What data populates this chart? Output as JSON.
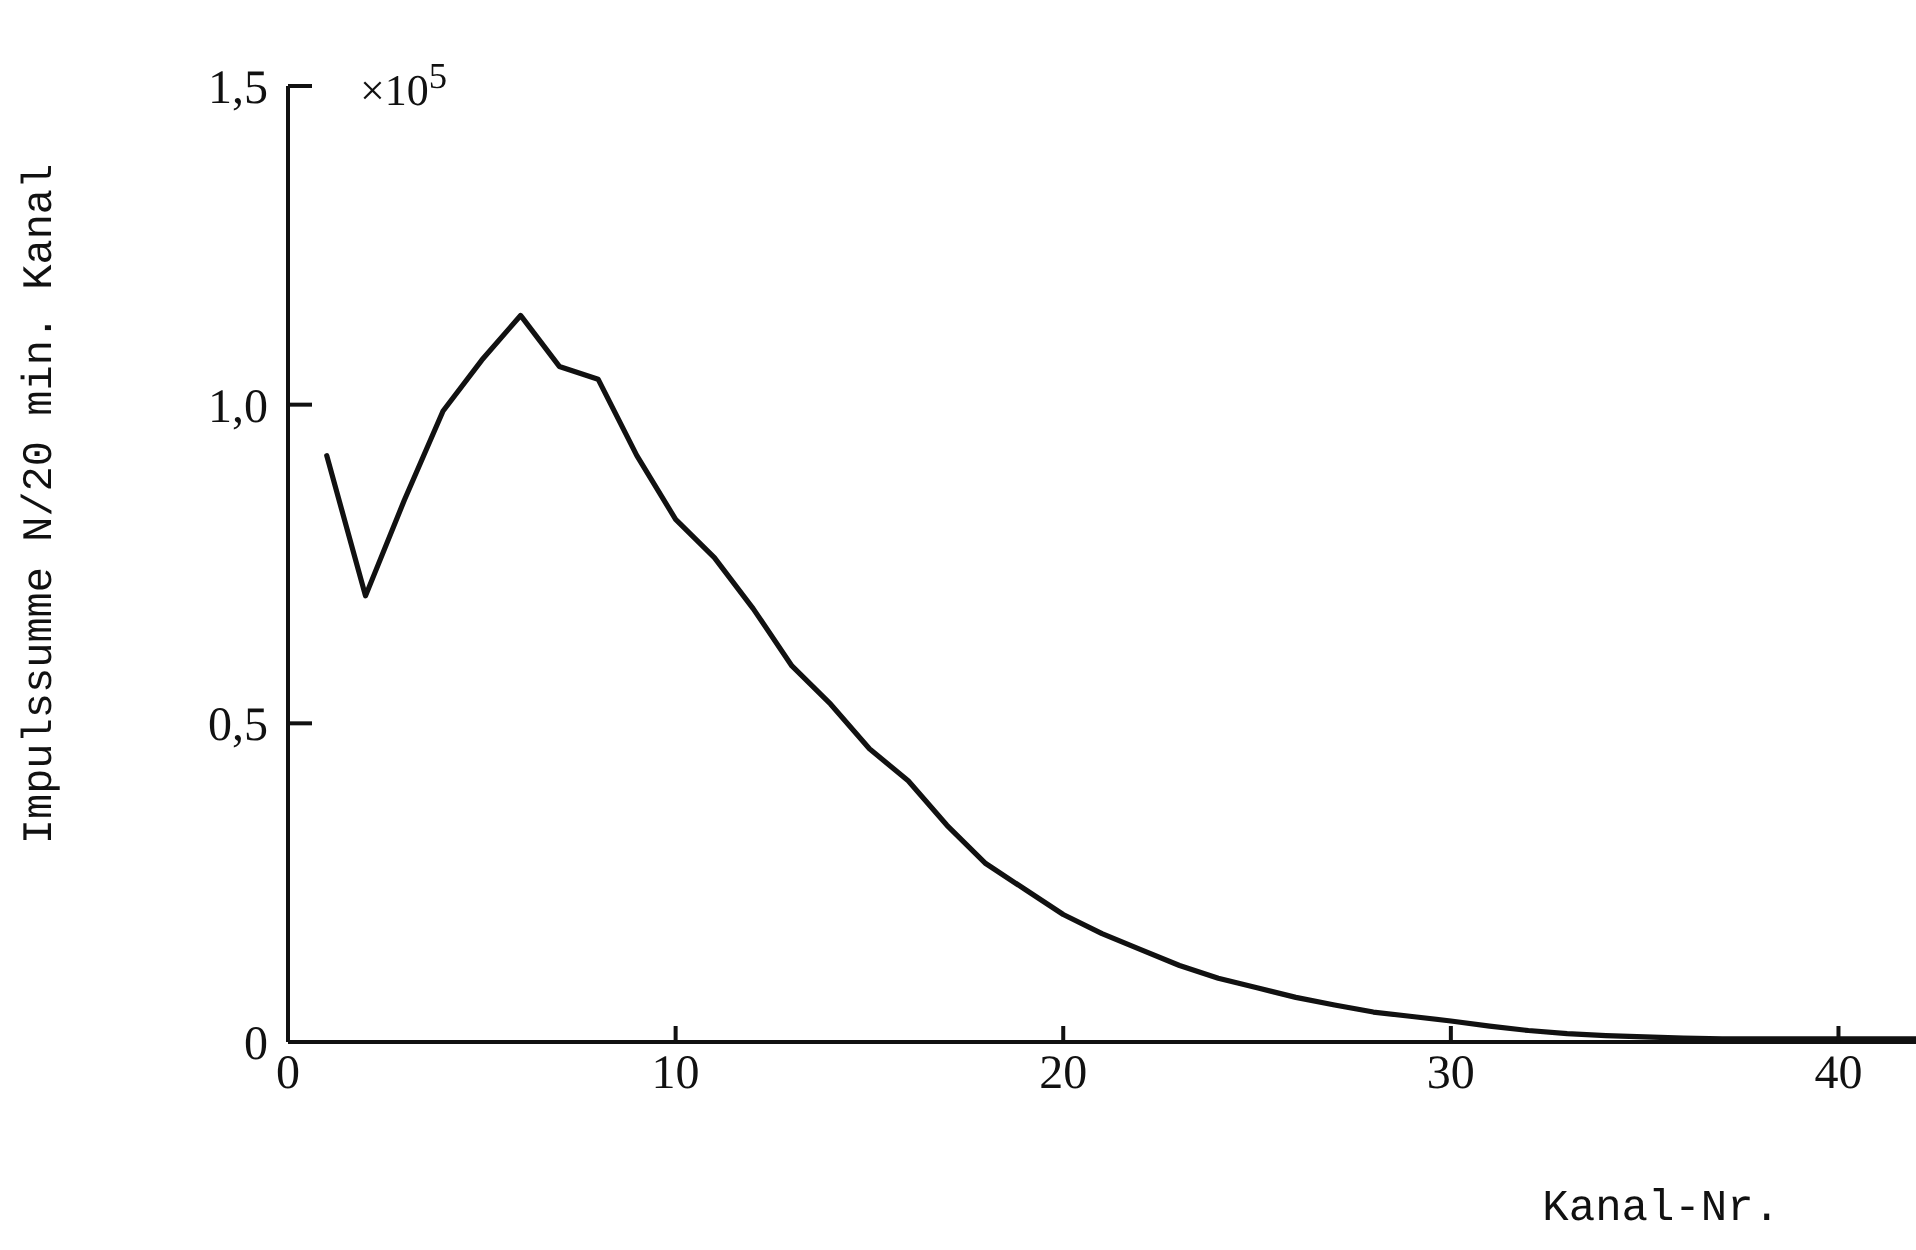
{
  "chart_data": {
    "type": "line",
    "xlabel": "Kanal-Nr.",
    "ylabel": "Impulssumme N/20 min. Kanal",
    "annotations": [
      "×10$^{5}$"
    ],
    "x": [
      1,
      2,
      3,
      4,
      5,
      6,
      7,
      8,
      9,
      10,
      11,
      12,
      13,
      14,
      15,
      16,
      17,
      18,
      19,
      20,
      21,
      22,
      23,
      24,
      25,
      26,
      27,
      28,
      29,
      30,
      31,
      32,
      33,
      34,
      35,
      36,
      37,
      38,
      39,
      40,
      41,
      42
    ],
    "series": [
      {
        "color": "#111111",
        "values": [
          0.92,
          0.7,
          0.85,
          0.99,
          1.07,
          1.14,
          1.06,
          1.04,
          0.92,
          0.82,
          0.76,
          0.68,
          0.59,
          0.53,
          0.46,
          0.41,
          0.34,
          0.28,
          0.24,
          0.2,
          0.17,
          0.145,
          0.12,
          0.1,
          0.085,
          0.07,
          0.058,
          0.047,
          0.04,
          0.033,
          0.025,
          0.018,
          0.013,
          0.01,
          0.008,
          0.006,
          0.005,
          0.005,
          0.005,
          0.005,
          0.005,
          0.005
        ]
      }
    ],
    "xlim": [
      0,
      42
    ],
    "xticks": [
      0,
      10,
      20,
      30,
      40
    ],
    "ylim": [
      0,
      1.5
    ],
    "yticks": [
      {
        "value": 0,
        "label": "0"
      },
      {
        "value": 0.5,
        "label": "0,5"
      },
      {
        "value": 1,
        "label": "1,0"
      },
      {
        "value": 1.5,
        "label": "1,5"
      }
    ],
    "grid": false,
    "legend": false,
    "marker": "none",
    "line_style": "solid"
  }
}
